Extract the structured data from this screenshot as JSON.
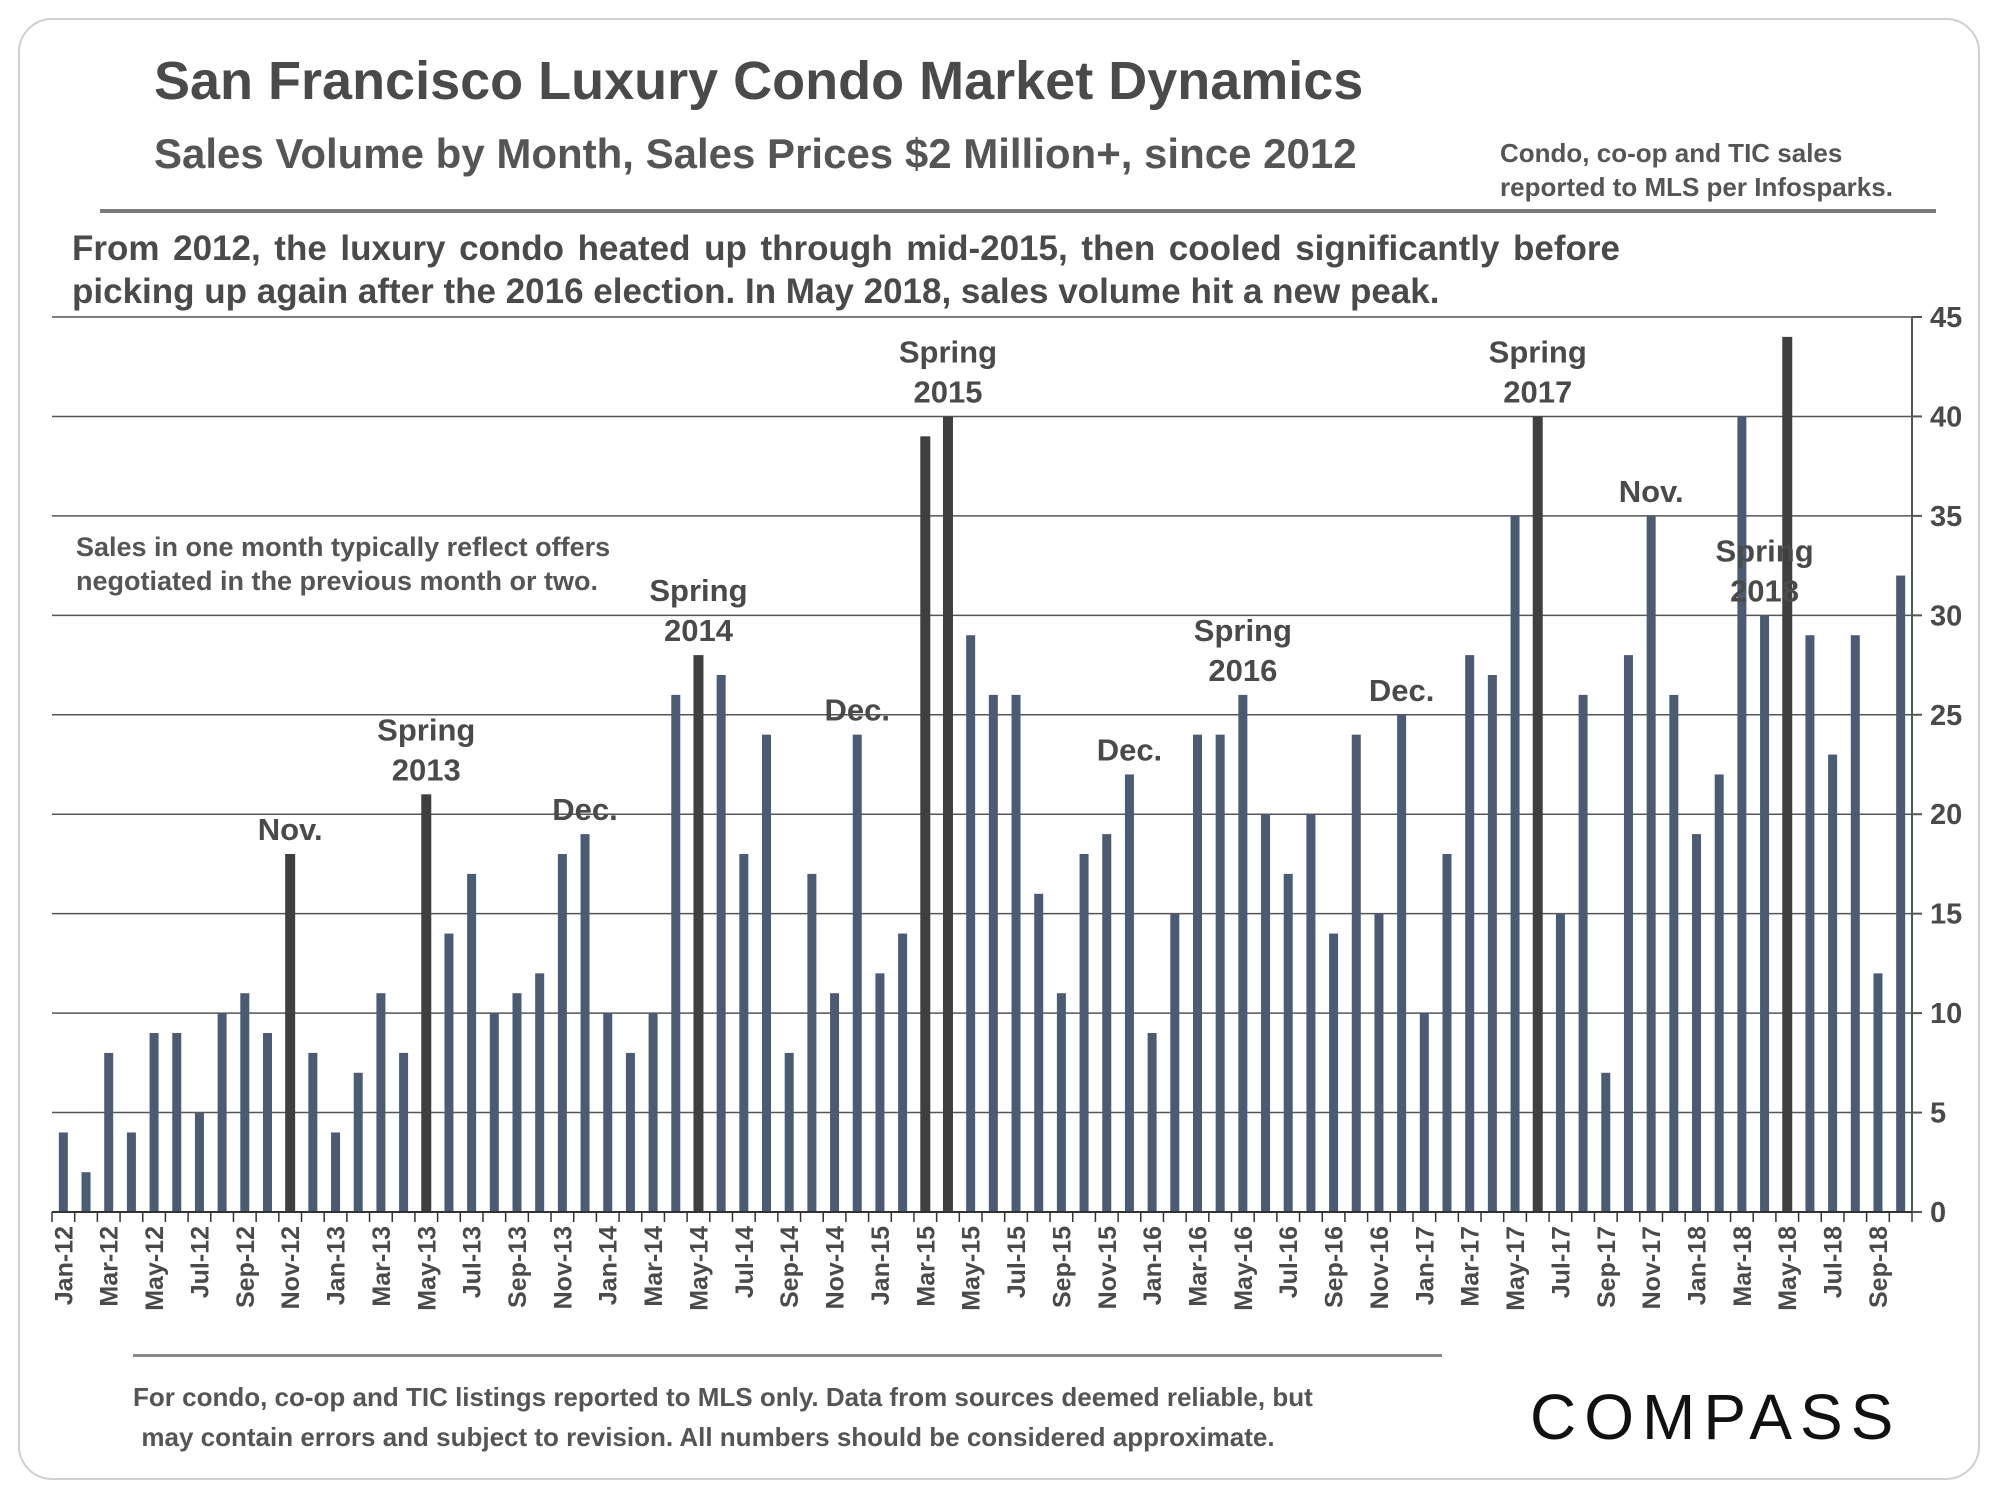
{
  "header": {
    "title": "San Francisco Luxury Condo Market Dynamics",
    "subtitle": "Sales Volume by Month, Sales Prices $2 Million+, since 2012",
    "source_line1": "Condo, co-op and TIC sales",
    "source_line2": "reported to MLS per Infosparks."
  },
  "intro": "From 2012, the luxury condo heated up through mid-2015, then cooled significantly before picking up again after the 2016 election. In May 2018, sales volume hit a new peak.",
  "note": {
    "line1": "Sales in one month typically reflect offers",
    "line2": "negotiated in the previous month or two."
  },
  "footer": {
    "line1": "For condo, co-op and TIC listings reported to MLS only. Data from sources deemed reliable, but",
    "line2": "may contain errors and subject to revision. All numbers should be considered approximate."
  },
  "logo": "COMPASS",
  "colors": {
    "bar": "#4b5b73",
    "highlight_bar": "#3f3f3f",
    "grid": "#555555"
  },
  "chart_data": {
    "type": "bar",
    "title": "Sales Volume by Month, Sales Prices $2 Million+, since 2012",
    "ylim": [
      0,
      45
    ],
    "y_ticks": [
      0,
      5,
      10,
      15,
      20,
      25,
      30,
      35,
      40,
      45
    ],
    "y_axis_side": "right",
    "grid": true,
    "x_tick_labels": [
      "Jan-12",
      "Mar-12",
      "May-12",
      "Jul-12",
      "Sep-12",
      "Nov-12",
      "Jan-13",
      "Mar-13",
      "May-13",
      "Jul-13",
      "Sep-13",
      "Nov-13",
      "Jan-14",
      "Mar-14",
      "May-14",
      "Jul-14",
      "Sep-14",
      "Nov-14",
      "Jan-15",
      "Mar-15",
      "May-15",
      "Jul-15",
      "Sep-15",
      "Nov-15",
      "Jan-16",
      "Mar-16",
      "May-16",
      "Jul-16",
      "Sep-16",
      "Nov-16",
      "Jan-17",
      "Mar-17",
      "May-17",
      "Jul-17",
      "Sep-17",
      "Nov-17",
      "Jan-18",
      "Mar-18",
      "May-18",
      "Jul-18",
      "Sep-18"
    ],
    "categories": [
      "Jan-12",
      "Feb-12",
      "Mar-12",
      "Apr-12",
      "May-12",
      "Jun-12",
      "Jul-12",
      "Aug-12",
      "Sep-12",
      "Oct-12",
      "Nov-12",
      "Dec-12",
      "Jan-13",
      "Feb-13",
      "Mar-13",
      "Apr-13",
      "May-13",
      "Jun-13",
      "Jul-13",
      "Aug-13",
      "Sep-13",
      "Oct-13",
      "Nov-13",
      "Dec-13",
      "Jan-14",
      "Feb-14",
      "Mar-14",
      "Apr-14",
      "May-14",
      "Jun-14",
      "Jul-14",
      "Aug-14",
      "Sep-14",
      "Oct-14",
      "Nov-14",
      "Dec-14",
      "Jan-15",
      "Feb-15",
      "Mar-15",
      "Apr-15",
      "May-15",
      "Jun-15",
      "Jul-15",
      "Aug-15",
      "Sep-15",
      "Oct-15",
      "Nov-15",
      "Dec-15",
      "Jan-16",
      "Feb-16",
      "Mar-16",
      "Apr-16",
      "May-16",
      "Jun-16",
      "Jul-16",
      "Aug-16",
      "Sep-16",
      "Oct-16",
      "Nov-16",
      "Dec-16",
      "Jan-17",
      "Feb-17",
      "Mar-17",
      "Apr-17",
      "May-17",
      "Jun-17",
      "Jul-17",
      "Aug-17",
      "Sep-17",
      "Oct-17",
      "Nov-17",
      "Dec-17",
      "Jan-18",
      "Feb-18",
      "Mar-18",
      "Apr-18",
      "May-18",
      "Jun-18",
      "Jul-18",
      "Aug-18",
      "Sep-18",
      "Oct-18"
    ],
    "values": [
      4,
      2,
      8,
      4,
      9,
      9,
      5,
      10,
      11,
      9,
      18,
      8,
      4,
      7,
      11,
      8,
      21,
      14,
      17,
      10,
      11,
      12,
      18,
      19,
      10,
      8,
      10,
      26,
      28,
      27,
      18,
      24,
      8,
      17,
      11,
      24,
      12,
      14,
      39,
      40,
      29,
      26,
      26,
      16,
      11,
      18,
      19,
      22,
      9,
      15,
      24,
      24,
      26,
      20,
      17,
      20,
      14,
      24,
      15,
      25,
      10,
      18,
      28,
      27,
      35,
      40,
      15,
      26,
      7,
      28,
      35,
      26,
      19,
      22,
      40,
      30,
      44,
      29,
      23,
      29,
      12,
      32
    ],
    "highlighted": [
      "Nov-12",
      "May-13",
      "May-14",
      "Mar-15",
      "Apr-15",
      "Jun-17",
      "May-18"
    ],
    "annotations": [
      {
        "lines": [
          "Nov."
        ],
        "category": "Nov-12"
      },
      {
        "lines": [
          "Spring",
          "2013"
        ],
        "category": "May-13"
      },
      {
        "lines": [
          "Dec."
        ],
        "category": "Dec-13"
      },
      {
        "lines": [
          "Spring",
          "2014"
        ],
        "category": "May-14"
      },
      {
        "lines": [
          "Dec."
        ],
        "category": "Dec-14"
      },
      {
        "lines": [
          "Spring",
          "2015"
        ],
        "category": "Apr-15"
      },
      {
        "lines": [
          "Dec."
        ],
        "category": "Dec-15"
      },
      {
        "lines": [
          "Spring",
          "2016"
        ],
        "category": "May-16"
      },
      {
        "lines": [
          "Dec."
        ],
        "category": "Dec-16"
      },
      {
        "lines": [
          "Spring",
          "2017"
        ],
        "category": "Jun-17"
      },
      {
        "lines": [
          "Nov."
        ],
        "category": "Nov-17"
      },
      {
        "lines": [
          "Spring",
          "2018"
        ],
        "category": "Apr-18"
      }
    ]
  }
}
